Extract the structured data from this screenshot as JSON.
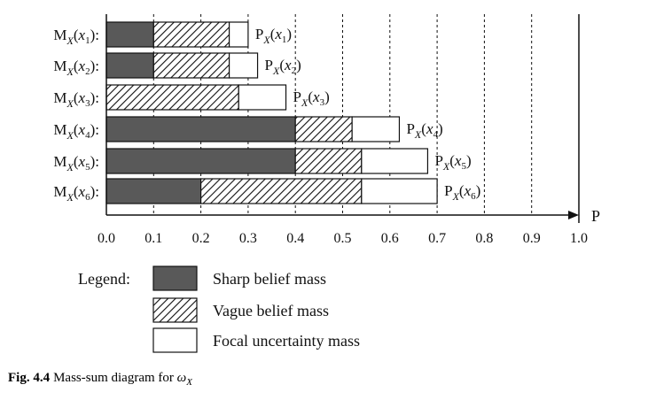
{
  "chart_data": {
    "type": "bar",
    "orientation": "horizontal",
    "stacked": true,
    "categories": [
      "x1",
      "x2",
      "x3",
      "x4",
      "x5",
      "x6"
    ],
    "row_labels": [
      {
        "base": "M",
        "sub": "X",
        "arg": "x",
        "idx": "1"
      },
      {
        "base": "M",
        "sub": "X",
        "arg": "x",
        "idx": "2"
      },
      {
        "base": "M",
        "sub": "X",
        "arg": "x",
        "idx": "3"
      },
      {
        "base": "M",
        "sub": "X",
        "arg": "x",
        "idx": "4"
      },
      {
        "base": "M",
        "sub": "X",
        "arg": "x",
        "idx": "5"
      },
      {
        "base": "M",
        "sub": "X",
        "arg": "x",
        "idx": "6"
      }
    ],
    "end_labels": [
      {
        "base": "P",
        "sub": "X",
        "arg": "x",
        "idx": "1"
      },
      {
        "base": "P",
        "sub": "X",
        "arg": "x",
        "idx": "2"
      },
      {
        "base": "P",
        "sub": "X",
        "arg": "x",
        "idx": "3"
      },
      {
        "base": "P",
        "sub": "X",
        "arg": "x",
        "idx": "4"
      },
      {
        "base": "P",
        "sub": "X",
        "arg": "x",
        "idx": "5"
      },
      {
        "base": "P",
        "sub": "X",
        "arg": "x",
        "idx": "6"
      }
    ],
    "series": [
      {
        "name": "Sharp belief mass",
        "values": [
          0.1,
          0.1,
          0.0,
          0.4,
          0.4,
          0.2
        ],
        "color": "#595959",
        "pattern": "solid"
      },
      {
        "name": "Vague belief mass",
        "values": [
          0.16,
          0.16,
          0.28,
          0.12,
          0.14,
          0.34
        ],
        "color": "#000000",
        "pattern": "hatch"
      },
      {
        "name": "Focal uncertainty mass",
        "values": [
          0.04,
          0.06,
          0.1,
          0.1,
          0.14,
          0.16
        ],
        "color": "#ffffff",
        "pattern": "empty"
      }
    ],
    "xlim": [
      0.0,
      1.0
    ],
    "xticks": [
      "0.0",
      "0.1",
      "0.2",
      "0.3",
      "0.4",
      "0.5",
      "0.6",
      "0.7",
      "0.8",
      "0.9",
      "1.0"
    ],
    "xlabel": "P",
    "grid": "vertical dashed",
    "legend_title": "Legend:",
    "legend_placement": "bottom"
  },
  "caption": {
    "label": "Fig. 4.4",
    "text": "Mass-sum diagram for ",
    "symbol": "ω",
    "symbol_sub": "X"
  }
}
